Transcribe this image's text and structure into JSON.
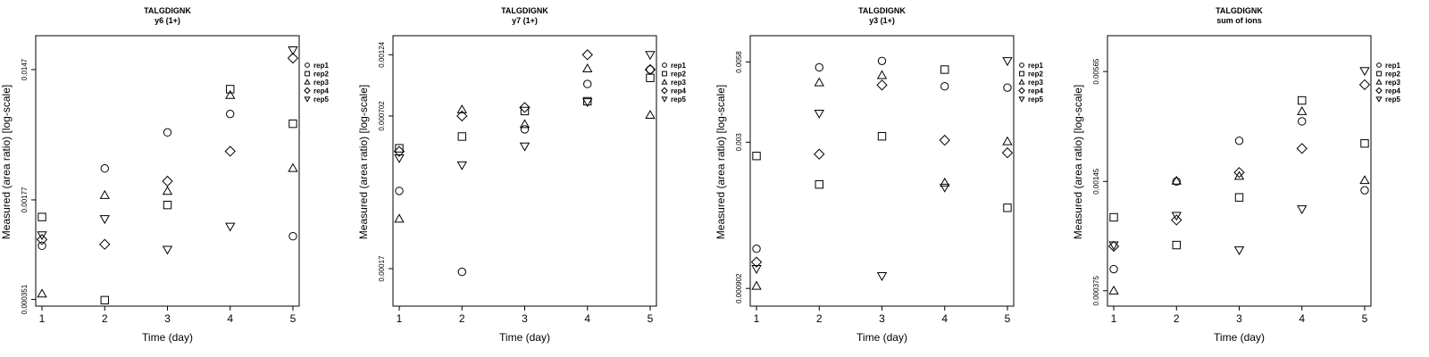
{
  "legend_labels": [
    "rep1",
    "rep2",
    "rep3",
    "rep4",
    "rep5"
  ],
  "marker_shapes": [
    "circle",
    "square",
    "triangle-up",
    "diamond",
    "triangle-down"
  ],
  "chart_data": [
    {
      "type": "scatter",
      "title": "TALGDIGNK",
      "subtitle": "y6 (1+)",
      "xlabel": "Time (day)",
      "ylabel": "Measured (area ratio) [log-scale]",
      "y_scale": "log",
      "x_ticks": [
        1,
        2,
        3,
        4,
        5
      ],
      "xlim": [
        0.9,
        5.1
      ],
      "y_ticks": [
        0.000351,
        0.00177,
        0.0147
      ],
      "y_tick_labels": [
        "0.000351",
        "0.00177",
        "0.0147"
      ],
      "ylim": [
        0.000315,
        0.0255
      ],
      "legend": "right",
      "series": [
        {
          "name": "rep1",
          "x": [
            1,
            2,
            3,
            4,
            5
          ],
          "y": [
            0.00084,
            0.00295,
            0.0053,
            0.00715,
            0.00098
          ]
        },
        {
          "name": "rep2",
          "x": [
            1,
            2,
            3,
            4,
            5
          ],
          "y": [
            0.00134,
            0.000347,
            0.00163,
            0.0107,
            0.0061
          ]
        },
        {
          "name": "rep3",
          "x": [
            1,
            2,
            3,
            4,
            5
          ],
          "y": [
            0.000385,
            0.00191,
            0.00204,
            0.0097,
            0.00296
          ]
        },
        {
          "name": "rep4",
          "x": [
            1,
            2,
            3,
            4,
            5
          ],
          "y": [
            0.00093,
            0.00086,
            0.0024,
            0.0039,
            0.0177
          ]
        },
        {
          "name": "rep5",
          "x": [
            1,
            2,
            3,
            4,
            5
          ],
          "y": [
            0.001,
            0.0013,
            0.00079,
            0.00115,
            0.0202
          ]
        }
      ]
    },
    {
      "type": "scatter",
      "title": "TALGDIGNK",
      "subtitle": "y7 (1+)",
      "xlabel": "Time (day)",
      "ylabel": "Measured (area ratio) [log-scale]",
      "y_scale": "log",
      "x_ticks": [
        1,
        2,
        3,
        4,
        5
      ],
      "xlim": [
        0.9,
        5.1
      ],
      "y_ticks": [
        0.00017,
        0.000702,
        0.00124
      ],
      "y_tick_labels": [
        "0.00017",
        "0.000702",
        "0.00124"
      ],
      "ylim": [
        0.00012,
        0.00148
      ],
      "legend": "right",
      "series": [
        {
          "name": "rep1",
          "x": [
            1,
            2,
            3,
            4,
            5
          ],
          "y": [
            0.00035,
            0.000165,
            0.00062,
            0.000945,
            0.00108
          ]
        },
        {
          "name": "rep2",
          "x": [
            1,
            2,
            3,
            4,
            5
          ],
          "y": [
            0.00052,
            0.00058,
            0.000735,
            0.000805,
            0.001
          ]
        },
        {
          "name": "rep3",
          "x": [
            1,
            2,
            3,
            4,
            5
          ],
          "y": [
            0.00027,
            0.000745,
            0.00065,
            0.00109,
            0.000708
          ]
        },
        {
          "name": "rep4",
          "x": [
            1,
            2,
            3,
            4,
            5
          ],
          "y": [
            0.000505,
            0.000702,
            0.00076,
            0.00124,
            0.00108
          ]
        },
        {
          "name": "rep5",
          "x": [
            1,
            2,
            3,
            4,
            5
          ],
          "y": [
            0.000475,
            0.000445,
            0.00053,
            0.0008,
            0.00124
          ]
        }
      ]
    },
    {
      "type": "scatter",
      "title": "TALGDIGNK",
      "subtitle": "y3 (1+)",
      "xlabel": "Time (day)",
      "ylabel": "Measured (area ratio) [log-scale]",
      "y_scale": "log",
      "x_ticks": [
        1,
        2,
        3,
        4,
        5
      ],
      "xlim": [
        0.9,
        5.1
      ],
      "y_ticks": [
        0.000902,
        0.003,
        0.0058
      ],
      "y_tick_labels": [
        "0.000902",
        "0.003",
        "0.0058"
      ],
      "ylim": [
        0.00078,
        0.0072
      ],
      "legend": "right",
      "series": [
        {
          "name": "rep1",
          "x": [
            1,
            2,
            3,
            4,
            5
          ],
          "y": [
            0.00125,
            0.00555,
            0.00585,
            0.00475,
            0.0047
          ]
        },
        {
          "name": "rep2",
          "x": [
            1,
            2,
            3,
            4,
            5
          ],
          "y": [
            0.00268,
            0.00212,
            0.00315,
            0.00545,
            0.00175
          ]
        },
        {
          "name": "rep3",
          "x": [
            1,
            2,
            3,
            4,
            5
          ],
          "y": [
            0.00092,
            0.0049,
            0.0052,
            0.00215,
            0.00302
          ]
        },
        {
          "name": "rep4",
          "x": [
            1,
            2,
            3,
            4,
            5
          ],
          "y": [
            0.00112,
            0.00272,
            0.0048,
            0.00305,
            0.00275
          ]
        },
        {
          "name": "rep5",
          "x": [
            1,
            2,
            3,
            4,
            5
          ],
          "y": [
            0.00106,
            0.0038,
            0.001,
            0.00207,
            0.00585
          ]
        }
      ]
    },
    {
      "type": "scatter",
      "title": "TALGDIGNK",
      "subtitle": "sum of ions",
      "xlabel": "Time (day)",
      "ylabel": "Measured (area ratio) [log-scale]",
      "y_scale": "log",
      "x_ticks": [
        1,
        2,
        3,
        4,
        5
      ],
      "xlim": [
        0.9,
        5.1
      ],
      "y_ticks": [
        0.000375,
        0.00145,
        0.00565
      ],
      "y_tick_labels": [
        "0.000375",
        "0.00145",
        "0.00565"
      ],
      "ylim": [
        0.00031,
        0.0088
      ],
      "legend": "right",
      "series": [
        {
          "name": "rep1",
          "x": [
            1,
            2,
            3,
            4,
            5
          ],
          "y": [
            0.00049,
            0.00145,
            0.0024,
            0.00305,
            0.0013
          ]
        },
        {
          "name": "rep2",
          "x": [
            1,
            2,
            3,
            4,
            5
          ],
          "y": [
            0.00093,
            0.00066,
            0.00119,
            0.00395,
            0.00232
          ]
        },
        {
          "name": "rep3",
          "x": [
            1,
            2,
            3,
            4,
            5
          ],
          "y": [
            0.000375,
            0.00146,
            0.00155,
            0.00345,
            0.00147
          ]
        },
        {
          "name": "rep4",
          "x": [
            1,
            2,
            3,
            4,
            5
          ],
          "y": [
            0.00065,
            0.0009,
            0.00162,
            0.00218,
            0.0048
          ]
        },
        {
          "name": "rep5",
          "x": [
            1,
            2,
            3,
            4,
            5
          ],
          "y": [
            0.00066,
            0.00095,
            0.00062,
            0.00103,
            0.0057
          ]
        }
      ]
    }
  ]
}
